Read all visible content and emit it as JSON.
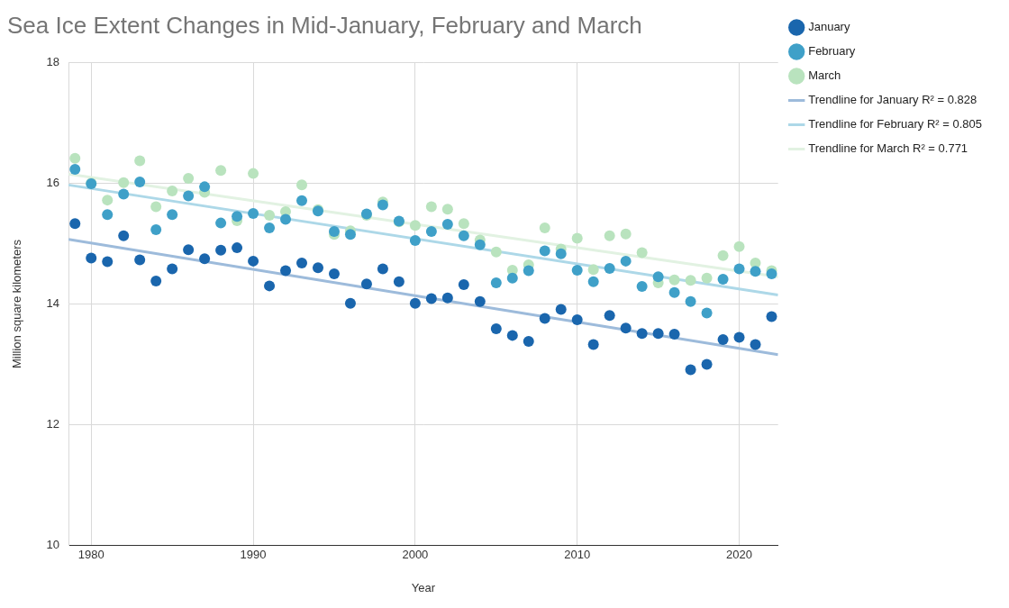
{
  "chart_data": {
    "type": "scatter",
    "title": "Sea Ice Extent Changes in Mid-January, February and March",
    "x_label": "Year",
    "y_label": "Million square kilometers",
    "x": [
      1979,
      1980,
      1981,
      1982,
      1983,
      1984,
      1985,
      1986,
      1987,
      1988,
      1989,
      1990,
      1991,
      1992,
      1993,
      1994,
      1995,
      1996,
      1997,
      1998,
      1999,
      2000,
      2001,
      2002,
      2003,
      2004,
      2005,
      2006,
      2007,
      2008,
      2009,
      2010,
      2011,
      2012,
      2013,
      2014,
      2015,
      2016,
      2017,
      2018,
      2019,
      2020,
      2021,
      2022
    ],
    "xlim": [
      1978.6,
      2022.4
    ],
    "xticks": [
      1980,
      1990,
      2000,
      2010,
      2020
    ],
    "ylim": [
      10,
      18
    ],
    "yticks": [
      10,
      12,
      14,
      16,
      18
    ],
    "grid": true,
    "legend": "right",
    "series": [
      {
        "name": "January",
        "type": "scatter",
        "marker": "circle",
        "color": "#1a66ad",
        "values": [
          15.33,
          14.76,
          14.7,
          15.13,
          14.73,
          14.38,
          14.58,
          14.9,
          14.75,
          14.89,
          14.93,
          14.71,
          14.3,
          14.55,
          14.68,
          14.6,
          14.5,
          14.01,
          14.33,
          14.58,
          14.37,
          14.01,
          14.09,
          14.1,
          14.32,
          14.04,
          13.59,
          13.48,
          13.38,
          13.76,
          13.91,
          13.74,
          13.33,
          13.81,
          13.6,
          13.51,
          13.51,
          13.5,
          12.91,
          13.0,
          13.41,
          13.45,
          13.33,
          13.79
        ]
      },
      {
        "name": "Trendline for January R² = 0.828",
        "type": "line",
        "line_style": "solid",
        "color": "#9dbbdb",
        "x": [
          1978.6,
          2022.4
        ],
        "values": [
          15.07,
          13.16
        ]
      },
      {
        "name": "February",
        "type": "scatter",
        "marker": "circle",
        "color": "#3fa0c8",
        "values": [
          16.23,
          15.99,
          15.48,
          15.82,
          16.02,
          15.23,
          15.48,
          15.79,
          15.94,
          15.34,
          15.45,
          15.5,
          15.26,
          15.4,
          15.71,
          15.54,
          15.2,
          15.15,
          15.49,
          15.64,
          15.37,
          15.05,
          15.2,
          15.32,
          15.13,
          14.98,
          14.35,
          14.43,
          14.55,
          14.88,
          14.83,
          14.56,
          14.37,
          14.59,
          14.71,
          14.29,
          14.45,
          14.19,
          14.04,
          13.85,
          14.41,
          14.58,
          14.54,
          14.5
        ]
      },
      {
        "name": "Trendline for February R² = 0.805",
        "type": "line",
        "line_style": "solid",
        "color": "#add8e8",
        "x": [
          1978.6,
          2022.4
        ],
        "values": [
          15.97,
          14.15
        ]
      },
      {
        "name": "March",
        "type": "scatter",
        "marker": "circle",
        "color": "#b9e3be",
        "values": [
          16.41,
          16.0,
          15.72,
          16.01,
          16.37,
          15.61,
          15.87,
          16.08,
          15.85,
          16.21,
          15.38,
          16.16,
          15.47,
          15.53,
          15.97,
          15.56,
          15.15,
          15.21,
          15.47,
          15.69,
          15.36,
          15.3,
          15.61,
          15.57,
          15.33,
          15.06,
          14.86,
          14.56,
          14.65,
          15.26,
          14.91,
          15.09,
          14.57,
          15.13,
          15.16,
          14.85,
          14.35,
          14.4,
          14.39,
          14.43,
          14.8,
          14.95,
          14.68,
          14.55
        ]
      },
      {
        "name": "Trendline for March R² = 0.771",
        "type": "line",
        "line_style": "solid",
        "color": "#e2f2e2",
        "x": [
          1978.6,
          2022.4
        ],
        "values": [
          16.15,
          14.45
        ]
      }
    ]
  }
}
